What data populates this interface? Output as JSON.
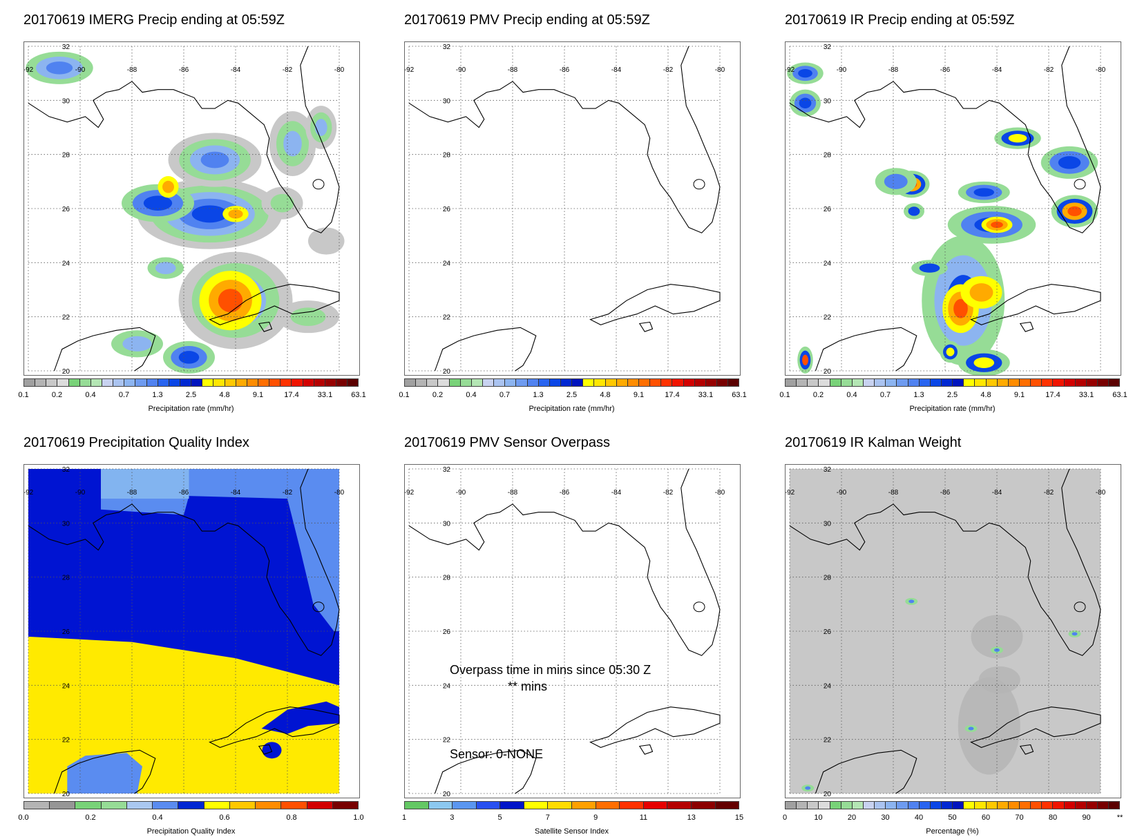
{
  "panels": [
    {
      "id": "imerg",
      "title": "20170619 IMERG Precip ending at 05:59Z",
      "map_type": "precip",
      "colorbar": {
        "colors": [
          "#a0a0a0",
          "#b4b4b4",
          "#c8c8c8",
          "#dcdcdc",
          "#78d278",
          "#96dc96",
          "#b4e6b4",
          "#c8d2f0",
          "#aac3f0",
          "#8cb4f0",
          "#6e9bf0",
          "#5082f0",
          "#2864f0",
          "#0a46e6",
          "#0028d2",
          "#0014be",
          "#ffff00",
          "#ffe600",
          "#ffc800",
          "#ffaa00",
          "#ff8c00",
          "#ff6e00",
          "#ff5000",
          "#ff3200",
          "#f01400",
          "#d20000",
          "#b40000",
          "#960000",
          "#780000",
          "#5a0000"
        ],
        "ticks": [
          "0.1",
          "0.2",
          "0.4",
          "0.7",
          "1.3",
          "2.5",
          "4.8",
          "9.1",
          "17.4",
          "33.1",
          "63.1"
        ],
        "label": "Precipitation rate (mm/hr)"
      }
    },
    {
      "id": "pmv",
      "title": "20170619 PMV Precip ending at 05:59Z",
      "map_type": "empty",
      "colorbar": {
        "colors": [
          "#a0a0a0",
          "#b4b4b4",
          "#c8c8c8",
          "#dcdcdc",
          "#78d278",
          "#96dc96",
          "#b4e6b4",
          "#c8d2f0",
          "#aac3f0",
          "#8cb4f0",
          "#6e9bf0",
          "#5082f0",
          "#2864f0",
          "#0a46e6",
          "#0028d2",
          "#0014be",
          "#ffff00",
          "#ffe600",
          "#ffc800",
          "#ffaa00",
          "#ff8c00",
          "#ff6e00",
          "#ff5000",
          "#ff3200",
          "#f01400",
          "#d20000",
          "#b40000",
          "#960000",
          "#780000",
          "#5a0000"
        ],
        "ticks": [
          "0.1",
          "0.2",
          "0.4",
          "0.7",
          "1.3",
          "2.5",
          "4.8",
          "9.1",
          "17.4",
          "33.1",
          "63.1"
        ],
        "label": "Precipitation rate (mm/hr)"
      }
    },
    {
      "id": "ir",
      "title": "20170619 IR Precip ending at 05:59Z",
      "map_type": "ir",
      "colorbar": {
        "colors": [
          "#a0a0a0",
          "#b4b4b4",
          "#c8c8c8",
          "#dcdcdc",
          "#78d278",
          "#96dc96",
          "#b4e6b4",
          "#c8d2f0",
          "#aac3f0",
          "#8cb4f0",
          "#6e9bf0",
          "#5082f0",
          "#2864f0",
          "#0a46e6",
          "#0028d2",
          "#0014be",
          "#ffff00",
          "#ffe600",
          "#ffc800",
          "#ffaa00",
          "#ff8c00",
          "#ff6e00",
          "#ff5000",
          "#ff3200",
          "#f01400",
          "#d20000",
          "#b40000",
          "#960000",
          "#780000",
          "#5a0000"
        ],
        "ticks": [
          "0.1",
          "0.2",
          "0.4",
          "0.7",
          "1.3",
          "2.5",
          "4.8",
          "9.1",
          "17.4",
          "33.1",
          "63.1"
        ],
        "label": "Precipitation rate (mm/hr)"
      }
    },
    {
      "id": "pqi",
      "title": "20170619 Precipitation Quality Index",
      "map_type": "quality",
      "colorbar": {
        "colors": [
          "#b4b4b4",
          "#969696",
          "#78d278",
          "#96dc96",
          "#aac8f0",
          "#5a8cf0",
          "#0028d2",
          "#ffff00",
          "#ffc800",
          "#ff8c00",
          "#ff5000",
          "#d20000",
          "#780000"
        ],
        "ticks": [
          "0.0",
          "0.2",
          "0.4",
          "0.6",
          "0.8",
          "1.0"
        ],
        "label": "Precipitation Quality Index"
      }
    },
    {
      "id": "overpass",
      "title": "20170619 PMV Sensor Overpass",
      "map_type": "overpass",
      "annotations": {
        "line1": "Overpass time in mins since 05:30 Z",
        "line2": "** mins",
        "sensor": "Sensor:   0-NONE"
      },
      "colorbar": {
        "colors": [
          "#64c864",
          "#8cc8f0",
          "#5a96f0",
          "#2850f0",
          "#0014c8",
          "#ffff00",
          "#ffdc00",
          "#ffa000",
          "#ff6e00",
          "#ff3200",
          "#e60000",
          "#b40000",
          "#8c0000",
          "#640000"
        ],
        "ticks": [
          "1",
          "3",
          "5",
          "7",
          "9",
          "11",
          "13",
          "15"
        ],
        "label": "Satellite Sensor Index"
      }
    },
    {
      "id": "kalman",
      "title": "20170619 IR Kalman Weight",
      "map_type": "kalman",
      "colorbar": {
        "colors": [
          "#a0a0a0",
          "#b4b4b4",
          "#c8c8c8",
          "#dcdcdc",
          "#78d278",
          "#96dc96",
          "#b4e6b4",
          "#c8d2f0",
          "#aac3f0",
          "#8cb4f0",
          "#6e9bf0",
          "#5082f0",
          "#2864f0",
          "#0a46e6",
          "#0028d2",
          "#0014be",
          "#ffff00",
          "#ffe600",
          "#ffc800",
          "#ffaa00",
          "#ff8c00",
          "#ff6e00",
          "#ff5000",
          "#ff3200",
          "#f01400",
          "#d20000",
          "#b40000",
          "#960000",
          "#780000",
          "#5a0000"
        ],
        "ticks": [
          "0",
          "10",
          "20",
          "30",
          "40",
          "50",
          "60",
          "70",
          "80",
          "90",
          "**"
        ],
        "label": "Percentage (%)"
      }
    }
  ],
  "map_labels": {
    "lon": [
      "-92",
      "-90",
      "-88",
      "-86",
      "-84",
      "-82",
      "-80"
    ],
    "lat": [
      "32",
      "30",
      "28",
      "26",
      "24",
      "22",
      "20"
    ]
  }
}
